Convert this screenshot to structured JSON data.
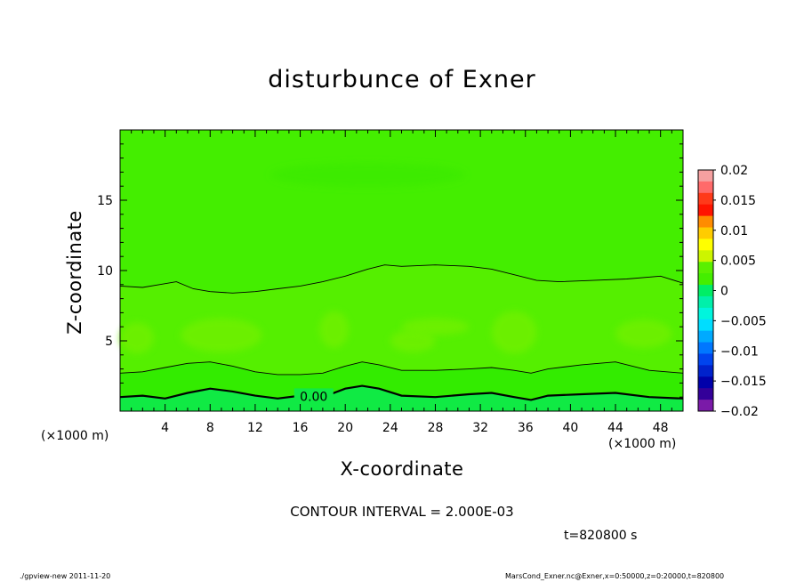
{
  "chart_data": {
    "type": "heatmap",
    "title": "disturbunce of Exner",
    "xlabel": "X-coordinate",
    "ylabel": "Z-coordinate",
    "x_unit_label": "(×1000 m)",
    "xlim": [
      0,
      50
    ],
    "ylim": [
      0,
      20
    ],
    "x_ticks": [
      4,
      8,
      12,
      16,
      20,
      24,
      28,
      32,
      36,
      40,
      44,
      48
    ],
    "y_ticks": [
      5,
      10,
      15
    ],
    "x_tick_labels": [
      "4",
      "8",
      "12",
      "16",
      "20",
      "24",
      "28",
      "32",
      "36",
      "40",
      "44",
      "48"
    ],
    "y_tick_labels": [
      "5",
      "10",
      "15"
    ],
    "contour_interval": "CONTOUR INTERVAL = 2.000E-03",
    "contour_label": "0.00",
    "time_label": "t=820800 s",
    "colorbar": {
      "labels": [
        "0.02",
        "0.015",
        "0.01",
        "0.005",
        "0",
        "−0.005",
        "−0.01",
        "−0.015",
        "−0.02"
      ],
      "colors_top_to_bottom": [
        "#f5a0a0",
        "#ff6a6a",
        "#ff3a1a",
        "#ff1400",
        "#ff8c00",
        "#ffcc00",
        "#ffff00",
        "#ccf500",
        "#5af000",
        "#44ee00",
        "#00ee66",
        "#00f0aa",
        "#00f5dd",
        "#00ddff",
        "#00aaff",
        "#0077ff",
        "#0044ee",
        "#0022cc",
        "#0000aa",
        "#330099",
        "#7a1aa8"
      ]
    },
    "contours": [
      {
        "level": 0.0,
        "bold": true,
        "x": [
          0,
          2,
          4,
          6,
          8,
          10,
          12,
          14,
          16,
          18,
          20,
          21.5,
          23,
          25,
          28,
          31,
          33,
          35,
          36.5,
          38,
          41,
          44,
          47,
          50
        ],
        "z": [
          1.0,
          1.1,
          0.9,
          1.3,
          1.6,
          1.4,
          1.1,
          0.9,
          1.1,
          1.0,
          1.6,
          1.8,
          1.6,
          1.1,
          1.0,
          1.2,
          1.3,
          1.0,
          0.8,
          1.1,
          1.2,
          1.3,
          1.0,
          0.9
        ]
      },
      {
        "level": 0.002,
        "bold": false,
        "x": [
          0,
          2,
          4,
          6,
          8,
          10,
          12,
          14,
          16,
          18,
          20,
          21.5,
          23,
          25,
          28,
          31,
          33,
          35,
          36.5,
          38,
          41,
          44,
          47,
          50
        ],
        "z": [
          2.7,
          2.8,
          3.1,
          3.4,
          3.5,
          3.2,
          2.8,
          2.6,
          2.6,
          2.7,
          3.2,
          3.5,
          3.3,
          2.9,
          2.9,
          3.0,
          3.1,
          2.9,
          2.7,
          3.0,
          3.3,
          3.5,
          2.9,
          2.7
        ]
      },
      {
        "level": 0.004,
        "bold": false,
        "x": [
          0,
          2,
          3.5,
          5,
          6.5,
          8,
          10,
          12,
          14,
          16,
          18,
          20,
          22,
          23.5,
          25,
          28,
          31,
          33,
          35,
          37,
          39,
          42,
          45,
          48,
          50
        ],
        "z": [
          8.9,
          8.8,
          9.0,
          9.2,
          8.7,
          8.5,
          8.4,
          8.5,
          8.7,
          8.9,
          9.2,
          9.6,
          10.1,
          10.4,
          10.3,
          10.4,
          10.3,
          10.1,
          9.7,
          9.3,
          9.2,
          9.3,
          9.4,
          9.6,
          9.1
        ]
      }
    ]
  },
  "footer": {
    "left": "./gpview-new   2011-11-20",
    "right": "MarsCond_Exner.nc@Exner,x=0:50000,z=0:20000,t=820800"
  }
}
